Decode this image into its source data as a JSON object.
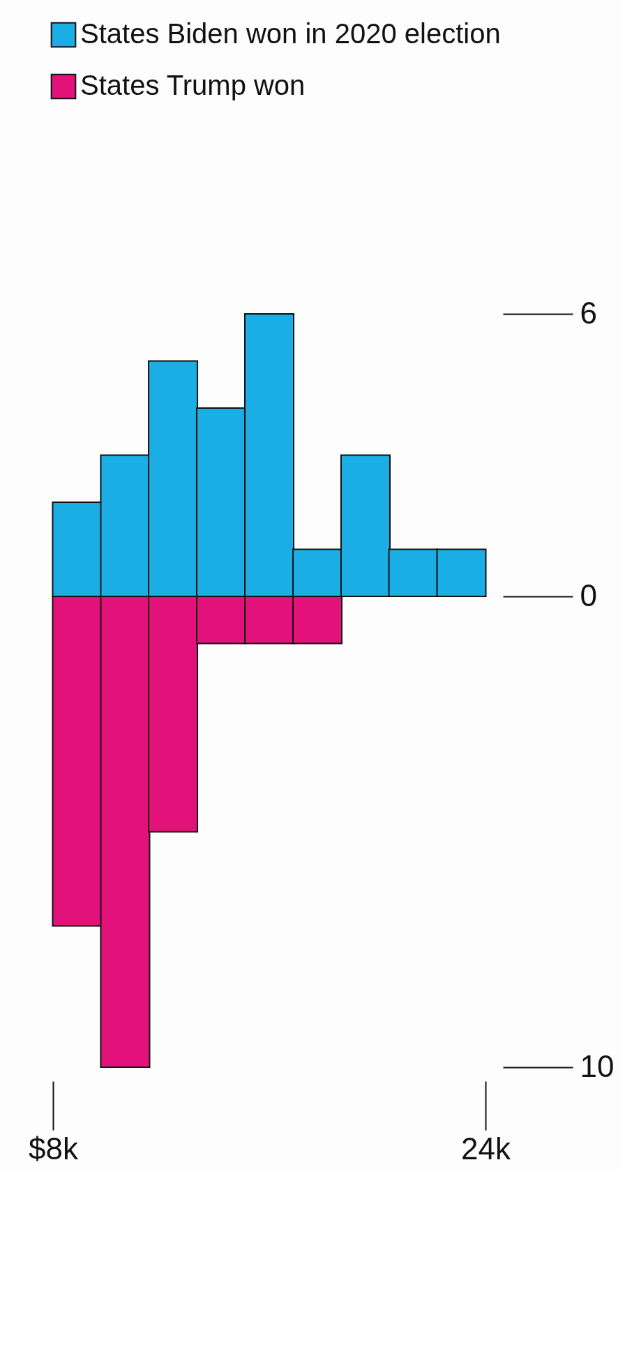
{
  "chart_data": {
    "type": "bar",
    "x": [
      8.89,
      10.67,
      12.44,
      14.22,
      16.0,
      17.78,
      19.56,
      21.33,
      23.11
    ],
    "series": [
      {
        "name": "States Biden won in 2020 election",
        "color": "#1aaee5",
        "values": [
          2,
          3,
          5,
          4,
          6,
          1,
          3,
          1,
          1
        ]
      },
      {
        "name": "States Trump won",
        "color": "#e2127a",
        "values": [
          -7,
          -10,
          -5,
          -1,
          -1,
          -1,
          null,
          null,
          null
        ]
      }
    ],
    "xlim": [
      8,
      24
    ],
    "xticks": [
      {
        "value": 8,
        "label": "$8k"
      },
      {
        "value": 24,
        "label": "24k"
      }
    ],
    "ylim": [
      -10,
      6
    ],
    "yticks": [
      {
        "value": -10,
        "label": "10"
      },
      0,
      6
    ],
    "stacked": true,
    "grid": false,
    "legend": "top left"
  }
}
